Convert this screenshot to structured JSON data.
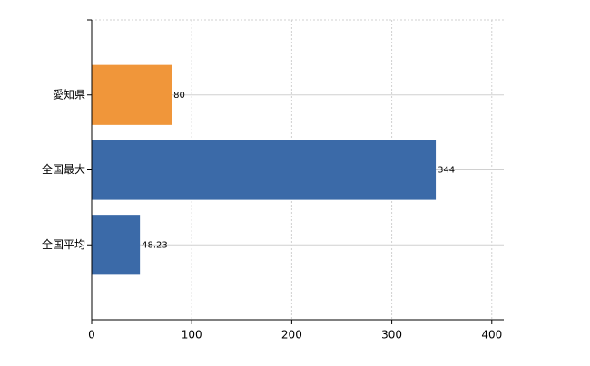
{
  "chart_data": {
    "type": "hbar",
    "categories": [
      "愛知県",
      "全国最大",
      "全国平均"
    ],
    "values": [
      80,
      344,
      48.23
    ],
    "colors": [
      "#f0963a",
      "#3b6aa8",
      "#3b6aa8"
    ],
    "xlim": [
      0,
      412
    ],
    "xticks": [
      0,
      100,
      200,
      300,
      400
    ],
    "grid": true
  }
}
